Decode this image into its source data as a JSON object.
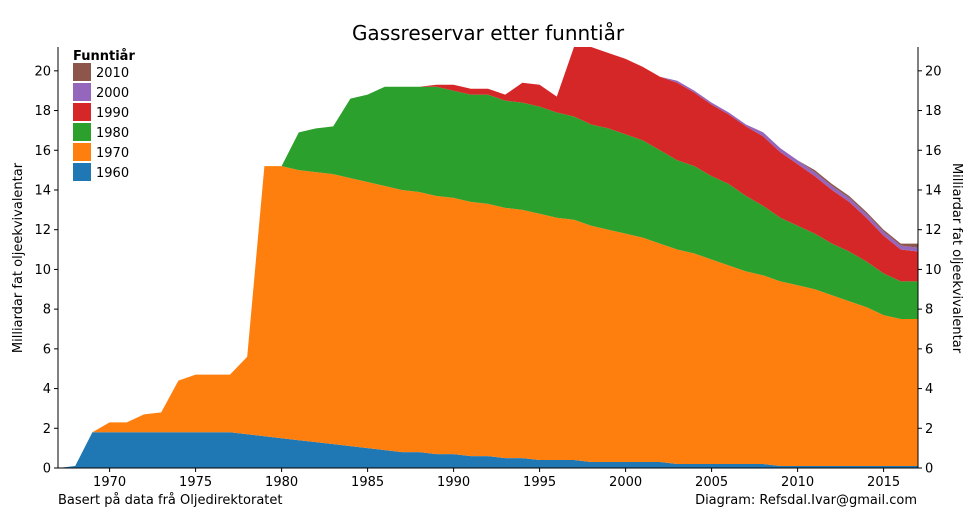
{
  "chart_data": {
    "type": "area",
    "stacked": true,
    "title": "Gassreservar etter funntiår",
    "ylabel": "Milliardar fat oljeekvivalentar",
    "ylabel_right": "Milliardar fat oljeekvivalentar",
    "xlim": [
      1967,
      2017
    ],
    "ylim": [
      0,
      21.2
    ],
    "x_ticks": [
      1970,
      1975,
      1980,
      1985,
      1990,
      1995,
      2000,
      2005,
      2010,
      2015
    ],
    "y_ticks": [
      0,
      2,
      4,
      6,
      8,
      10,
      12,
      14,
      16,
      18,
      20
    ],
    "grid": false,
    "legend_title": "Funntiår",
    "legend_position": "top-left",
    "x": [
      1967,
      1968,
      1969,
      1970,
      1971,
      1972,
      1973,
      1974,
      1975,
      1976,
      1977,
      1978,
      1979,
      1980,
      1981,
      1982,
      1983,
      1984,
      1985,
      1986,
      1987,
      1988,
      1989,
      1990,
      1991,
      1992,
      1993,
      1994,
      1995,
      1996,
      1997,
      1998,
      1999,
      2000,
      2001,
      2002,
      2003,
      2004,
      2005,
      2006,
      2007,
      2008,
      2009,
      2010,
      2011,
      2012,
      2013,
      2014,
      2015,
      2016,
      2017
    ],
    "series": [
      {
        "name": "1960",
        "color": "#1f77b4",
        "values": [
          0.0,
          0.1,
          1.8,
          1.8,
          1.8,
          1.8,
          1.8,
          1.8,
          1.8,
          1.8,
          1.8,
          1.7,
          1.6,
          1.5,
          1.4,
          1.3,
          1.2,
          1.1,
          1.0,
          0.9,
          0.8,
          0.8,
          0.7,
          0.7,
          0.6,
          0.6,
          0.5,
          0.5,
          0.4,
          0.4,
          0.4,
          0.3,
          0.3,
          0.3,
          0.3,
          0.3,
          0.2,
          0.2,
          0.2,
          0.2,
          0.2,
          0.2,
          0.1,
          0.1,
          0.1,
          0.1,
          0.1,
          0.1,
          0.1,
          0.1,
          0.1
        ]
      },
      {
        "name": "1970",
        "color": "#ff7f0e",
        "values": [
          0.0,
          0.0,
          0.0,
          0.5,
          0.5,
          0.9,
          1.0,
          2.6,
          2.9,
          2.9,
          2.9,
          3.9,
          13.6,
          13.7,
          13.6,
          13.6,
          13.6,
          13.5,
          13.4,
          13.3,
          13.2,
          13.1,
          13.0,
          12.9,
          12.8,
          12.7,
          12.6,
          12.5,
          12.4,
          12.2,
          12.1,
          11.9,
          11.7,
          11.5,
          11.3,
          11.0,
          10.8,
          10.6,
          10.3,
          10.0,
          9.7,
          9.5,
          9.3,
          9.1,
          8.9,
          8.6,
          8.3,
          8.0,
          7.6,
          7.4,
          7.4
        ]
      },
      {
        "name": "1980",
        "color": "#2ca02c",
        "values": [
          0,
          0,
          0,
          0,
          0,
          0,
          0,
          0,
          0,
          0,
          0,
          0,
          0,
          0,
          1.9,
          2.2,
          2.4,
          4.0,
          4.4,
          5.0,
          5.2,
          5.3,
          5.5,
          5.4,
          5.4,
          5.5,
          5.4,
          5.4,
          5.4,
          5.3,
          5.2,
          5.1,
          5.1,
          5.0,
          4.9,
          4.7,
          4.5,
          4.4,
          4.2,
          4.1,
          3.8,
          3.5,
          3.2,
          3.0,
          2.8,
          2.6,
          2.5,
          2.3,
          2.1,
          1.9,
          1.9
        ]
      },
      {
        "name": "1990",
        "color": "#d62728",
        "values": [
          0,
          0,
          0,
          0,
          0,
          0,
          0,
          0,
          0,
          0,
          0,
          0,
          0,
          0,
          0,
          0,
          0,
          0,
          0,
          0,
          0,
          0,
          0.1,
          0.3,
          0.3,
          0.3,
          0.3,
          1.0,
          1.1,
          0.8,
          3.5,
          3.9,
          3.8,
          3.8,
          3.7,
          3.7,
          3.9,
          3.7,
          3.6,
          3.5,
          3.5,
          3.5,
          3.3,
          3.1,
          2.9,
          2.7,
          2.5,
          2.2,
          1.9,
          1.6,
          1.5
        ]
      },
      {
        "name": "2000",
        "color": "#9467bd",
        "values": [
          0,
          0,
          0,
          0,
          0,
          0,
          0,
          0,
          0,
          0,
          0,
          0,
          0,
          0,
          0,
          0,
          0,
          0,
          0,
          0,
          0,
          0,
          0,
          0,
          0,
          0,
          0,
          0,
          0,
          0,
          0,
          0,
          0,
          0,
          0,
          0,
          0.1,
          0.1,
          0.1,
          0.1,
          0.1,
          0.2,
          0.2,
          0.2,
          0.2,
          0.2,
          0.2,
          0.2,
          0.2,
          0.2,
          0.2
        ]
      },
      {
        "name": "2010",
        "color": "#8c564b",
        "values": [
          0,
          0,
          0,
          0,
          0,
          0,
          0,
          0,
          0,
          0,
          0,
          0,
          0,
          0,
          0,
          0,
          0,
          0,
          0,
          0,
          0,
          0,
          0,
          0,
          0,
          0,
          0,
          0,
          0,
          0,
          0,
          0,
          0,
          0,
          0,
          0,
          0,
          0,
          0,
          0,
          0,
          0,
          0,
          0,
          0.1,
          0.1,
          0.1,
          0.1,
          0.1,
          0.1,
          0.2
        ]
      }
    ]
  },
  "footer": {
    "source": "Basert på data frå Oljedirektoratet",
    "credit": "Diagram: Refsdal.Ivar@gmail.com"
  }
}
